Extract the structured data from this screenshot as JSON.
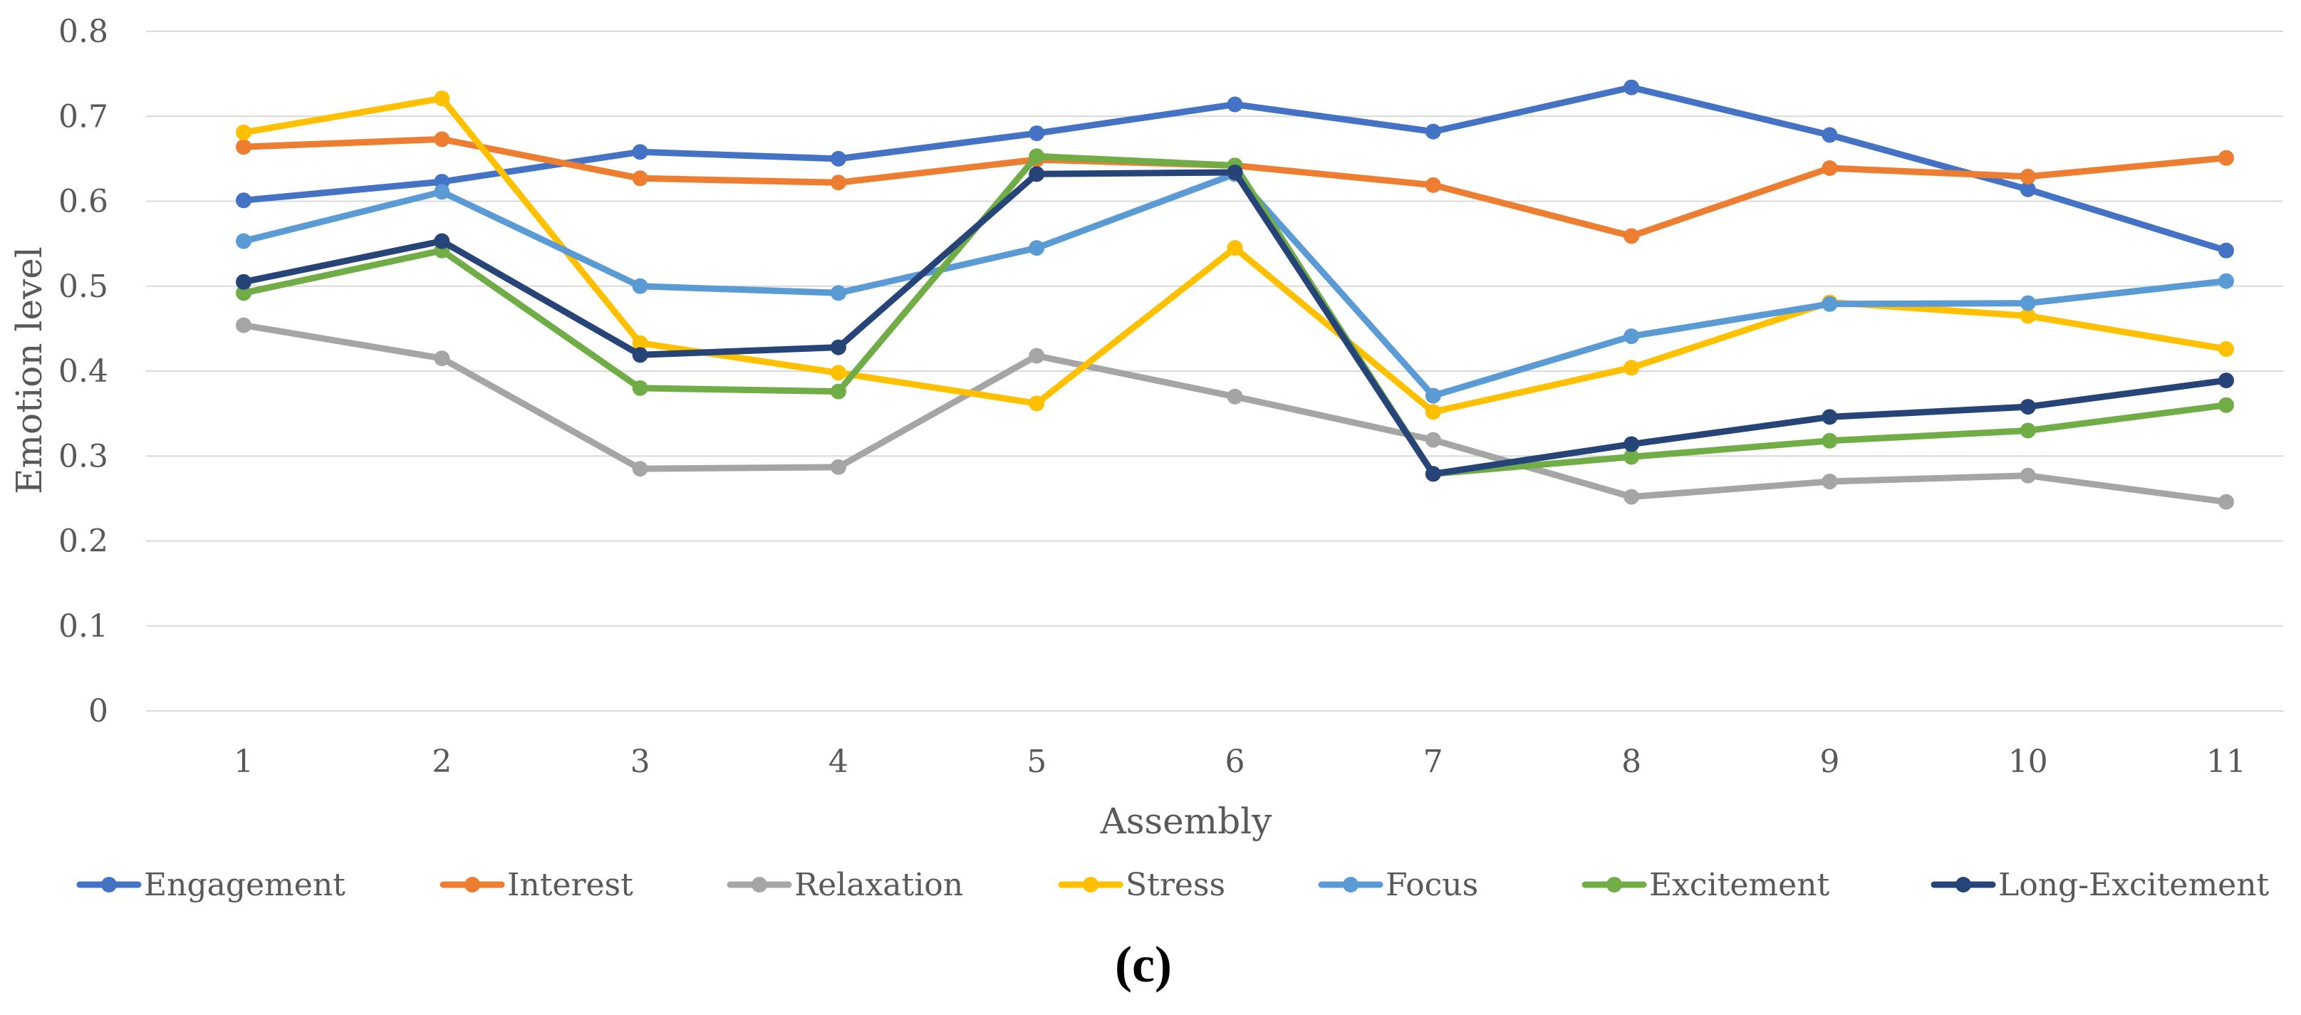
{
  "chart_data": {
    "type": "line",
    "title": "",
    "xlabel": "Assembly",
    "ylabel": "Emotion level",
    "panel_label": "(c)",
    "ylim": [
      0,
      0.8
    ],
    "yticks": [
      "0",
      "0.1",
      "0.2",
      "0.3",
      "0.4",
      "0.5",
      "0.6",
      "0.7",
      "0.8"
    ],
    "categories": [
      "1",
      "2",
      "3",
      "4",
      "5",
      "6",
      "7",
      "8",
      "9",
      "10",
      "11"
    ],
    "grid": true,
    "legend_position": "bottom",
    "series": [
      {
        "name": "Engagement",
        "color": "#4472C4",
        "values": [
          0.601,
          0.623,
          0.658,
          0.65,
          0.68,
          0.714,
          0.682,
          0.734,
          0.678,
          0.614,
          0.542
        ]
      },
      {
        "name": "Interest",
        "color": "#ED7D31",
        "values": [
          0.664,
          0.673,
          0.627,
          0.622,
          0.649,
          0.642,
          0.619,
          0.559,
          0.639,
          0.629,
          0.651
        ]
      },
      {
        "name": "Relaxation",
        "color": "#A5A5A5",
        "values": [
          0.454,
          0.415,
          0.285,
          0.287,
          0.418,
          0.37,
          0.319,
          0.252,
          0.27,
          0.277,
          0.246
        ]
      },
      {
        "name": "Stress",
        "color": "#FFC000",
        "values": [
          0.681,
          0.721,
          0.433,
          0.398,
          0.362,
          0.545,
          0.352,
          0.404,
          0.481,
          0.465,
          0.426
        ]
      },
      {
        "name": "Focus",
        "color": "#5B9BD5",
        "values": [
          0.553,
          0.611,
          0.5,
          0.492,
          0.545,
          0.632,
          0.371,
          0.441,
          0.479,
          0.48,
          0.506
        ]
      },
      {
        "name": "Excitement",
        "color": "#70AD47",
        "values": [
          0.492,
          0.542,
          0.38,
          0.376,
          0.653,
          0.642,
          0.279,
          0.299,
          0.318,
          0.33,
          0.36
        ]
      },
      {
        "name": "Long-Excitement",
        "color": "#264478",
        "values": [
          0.505,
          0.553,
          0.419,
          0.428,
          0.632,
          0.634,
          0.279,
          0.314,
          0.346,
          0.358,
          0.389
        ]
      }
    ]
  }
}
